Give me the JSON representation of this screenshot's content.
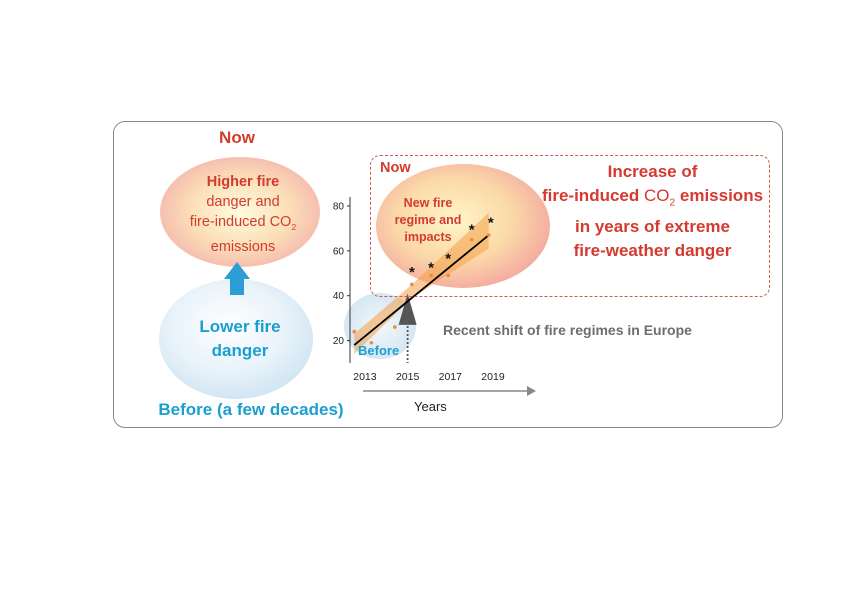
{
  "left": {
    "now_title": "Now",
    "now_oval": {
      "line1": "Higher fire",
      "line2": "danger and",
      "line3_prefix": "fire-induced CO",
      "line3_sub": "2",
      "line4": "emissions"
    },
    "lower_oval": {
      "line1": "Lower fire",
      "line2": "danger"
    },
    "before_title": "Before (a few decades)"
  },
  "graph": {
    "now_label": "Now",
    "new_fire": {
      "line1": "New fire",
      "line2": "regime and",
      "line3": "impacts"
    },
    "before_label": "Before",
    "recent_shift": "Recent shift of fire regimes in Europe",
    "xlabel": "Years",
    "asterisk": "*"
  },
  "increase": {
    "line1": "Increase of",
    "line2_prefix": "fire-induced ",
    "line2_co": "CO",
    "line2_sub": "2",
    "line2_suffix": " emissions",
    "line3": "in years of extreme",
    "line4": "fire-weather danger"
  },
  "chart_data": {
    "type": "scatter",
    "title": "",
    "xlabel": "Years",
    "ylabel": "",
    "x_ticks": [
      "2013",
      "2015",
      "2017",
      "2019"
    ],
    "y_ticks": [
      20,
      40,
      60,
      80
    ],
    "xlim": [
      2012.3,
      2020.5
    ],
    "ylim": [
      10,
      84
    ],
    "points": [
      {
        "x": 2012.5,
        "y": 24
      },
      {
        "x": 2013.3,
        "y": 19
      },
      {
        "x": 2014.4,
        "y": 26
      },
      {
        "x": 2015.2,
        "y": 45
      },
      {
        "x": 2016.1,
        "y": 49
      },
      {
        "x": 2016.9,
        "y": 49
      },
      {
        "x": 2018.0,
        "y": 65
      },
      {
        "x": 2018.8,
        "y": 67
      }
    ],
    "asterisk_points": [
      {
        "x": 2015.2,
        "y": 51
      },
      {
        "x": 2016.1,
        "y": 53
      },
      {
        "x": 2016.9,
        "y": 57
      },
      {
        "x": 2018.0,
        "y": 70
      },
      {
        "x": 2018.9,
        "y": 73
      }
    ],
    "trend_line": {
      "x": [
        2012.5,
        2018.8
      ],
      "y": [
        18,
        67
      ]
    },
    "shift_year": 2015,
    "colors": {
      "points": "#f08a3a",
      "trend": "#000000",
      "band": "#f4a04a",
      "now": "#d43a2f",
      "before": "#1a9fd0"
    }
  }
}
